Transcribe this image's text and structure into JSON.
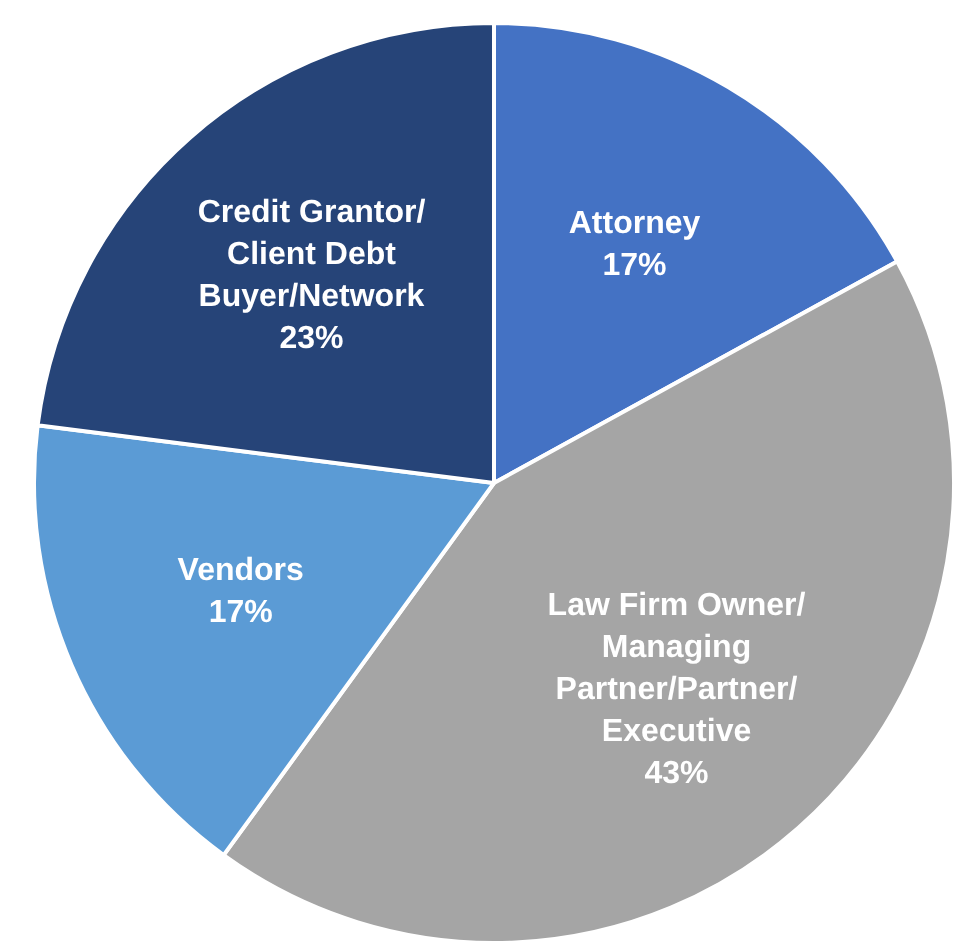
{
  "chart_data": {
    "type": "pie",
    "categories": [
      "Attorney",
      "Law Firm Owner/\nManaging\nPartner/Partner/\nExecutive",
      "Vendors",
      "Credit Grantor/\nClient Debt\nBuyer/Network"
    ],
    "values": [
      17,
      43,
      17,
      23
    ],
    "value_labels": [
      "17%",
      "43%",
      "17%",
      "23%"
    ],
    "colors": [
      "#4472c4",
      "#a5a5a5",
      "#5b9bd5",
      "#264478"
    ],
    "legend": false
  }
}
